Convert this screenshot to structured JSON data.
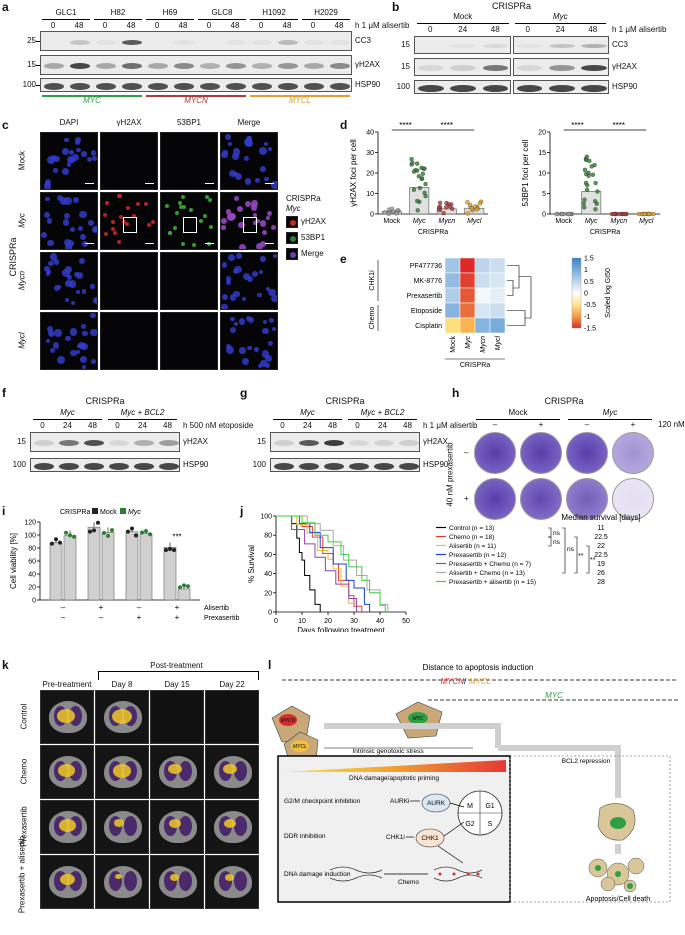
{
  "panels": {
    "a": {
      "letter": "a",
      "cell_lines": [
        "GLC1",
        "H82",
        "H69",
        "GLC8",
        "H1092",
        "H2029"
      ],
      "time_points": [
        "0",
        "48"
      ],
      "treatment": "h 1 μM alisertib",
      "markers": [
        "CC3",
        "γH2AX",
        "HSP90"
      ],
      "mw": [
        "25",
        "15",
        "100"
      ],
      "groups": [
        {
          "label": "MYC",
          "color": "#2f9e44"
        },
        {
          "label": "MYCN",
          "color": "#b03a3a"
        },
        {
          "label": "MYCL",
          "color": "#e0a030"
        }
      ]
    },
    "b": {
      "letter": "b",
      "title": "CRISPRa",
      "groups": [
        "Mock",
        "Myc"
      ],
      "time_points": [
        "0",
        "24",
        "48"
      ],
      "treatment": "h 1 μM alisertib",
      "markers": [
        "CC3",
        "γH2AX",
        "HSP90"
      ],
      "mw": [
        "15",
        "15",
        "100"
      ]
    },
    "c": {
      "letter": "c",
      "columns": [
        "DAPI",
        "γH2AX",
        "53BP1",
        "Merge"
      ],
      "rows": [
        "Mock",
        "Myc",
        "Mycn",
        "Mycl"
      ],
      "side_label": "CRISPRa",
      "legend_title": "CRISPRa",
      "legend_subtitle": "Myc",
      "legend_items": [
        "γH2AX",
        "53BP1",
        "Merge"
      ]
    },
    "d": {
      "letter": "d",
      "xlabel": "CRISPRa",
      "significance": "****",
      "plots": [
        {
          "ylabel": "γH2AX foci per cell",
          "yticks": [
            "0",
            "10",
            "20",
            "30",
            "40"
          ],
          "ymax": 40,
          "categories": [
            "Mock",
            "Myc",
            "Mycn",
            "Mycl"
          ],
          "means": [
            1.2,
            13,
            2.5,
            2.8
          ],
          "colors": [
            "#9e9e9e",
            "#2f7d32",
            "#b03a3a",
            "#e0a030"
          ]
        },
        {
          "ylabel": "53BP1 foci per cell",
          "yticks": [
            "0",
            "5",
            "10",
            "15",
            "20"
          ],
          "ymax": 20,
          "categories": [
            "Mock",
            "Myc",
            "Mycn",
            "Mycl"
          ],
          "means": [
            0,
            5.5,
            0,
            0
          ],
          "colors": [
            "#9e9e9e",
            "#2f7d32",
            "#b03a3a",
            "#e0a030"
          ]
        }
      ]
    },
    "e": {
      "letter": "e",
      "rows": [
        "PF477736",
        "MK-8776",
        "Prexasertib",
        "Etoposide",
        "Cisplatin"
      ],
      "columns": [
        "Mock",
        "Myc",
        "Mycn",
        "Mycl"
      ],
      "group_labels": [
        "CHK1i",
        "Chemo"
      ],
      "xlabel": "CRISPRa",
      "colorbar_label": "Scaled log GI50",
      "colorbar_ticks": [
        "1.5",
        "1",
        "0.5",
        "0",
        "-0.5",
        "-1",
        "-1.5"
      ],
      "values": [
        [
          0.7,
          -1.5,
          0.5,
          0.4
        ],
        [
          0.8,
          -1.4,
          0.4,
          0.3
        ],
        [
          0.6,
          -1.3,
          0.1,
          0.2
        ],
        [
          0.9,
          -1.2,
          0.3,
          0.4
        ],
        [
          -0.6,
          -0.9,
          0.9,
          1.0
        ]
      ]
    },
    "f": {
      "letter": "f",
      "title": "CRISPRa",
      "groups": [
        "Myc",
        "Myc + BCL2"
      ],
      "time_points": [
        "0",
        "24",
        "48",
        "0",
        "24",
        "48"
      ],
      "treatment": "h 500 nM etoposide",
      "markers": [
        "γH2AX",
        "HSP90"
      ],
      "mw": [
        "15",
        "100"
      ]
    },
    "g": {
      "letter": "g",
      "title": "CRISPRa",
      "groups": [
        "Myc",
        "Myc + BCL2"
      ],
      "time_points": [
        "0",
        "24",
        "48",
        "0",
        "24",
        "48"
      ],
      "treatment": "h 1 μM alisertib",
      "markers": [
        "γH2AX",
        "HSP90"
      ],
      "mw": [
        "15",
        "100"
      ]
    },
    "h": {
      "letter": "h",
      "title": "CRISPRa",
      "groups": [
        "Mock",
        "Myc"
      ],
      "alisertib": "120 nM alisertib",
      "prexasertib": "40 nM prexasertib",
      "signs": [
        "–",
        "+",
        "–",
        "+"
      ],
      "row_signs": [
        "–",
        "+"
      ]
    },
    "i": {
      "letter": "i",
      "legend_prefix": "CRISPRa",
      "legend": [
        "Mock",
        "Myc"
      ],
      "ylabel": "Cell viability [%]",
      "yticks": [
        "0",
        "20",
        "40",
        "60",
        "80",
        "100",
        "120"
      ],
      "ymax": 120,
      "row_labels": [
        "Alisertib",
        "Prexasertib"
      ],
      "alisertib_signs": [
        "–",
        "+",
        "–",
        "+"
      ],
      "prexasertib_signs": [
        "–",
        "–",
        "+",
        "+"
      ],
      "significance": "***"
    },
    "j": {
      "letter": "j",
      "ylabel": "% Survival",
      "xlabel": "Days following treatment",
      "yticks": [
        "0",
        "20",
        "40",
        "60",
        "80",
        "100"
      ],
      "xticks": [
        "0",
        "10",
        "20",
        "30",
        "40",
        "50"
      ],
      "median_title": "Median survival [days]",
      "ns": "ns",
      "stars": "**",
      "series": [
        {
          "name": "Control (n = 13)",
          "color": "#000000",
          "median": "11"
        },
        {
          "name": "Chemo (n = 18)",
          "color": "#e53935",
          "median": "22.5"
        },
        {
          "name": "Alisertib (n = 11)",
          "color": "#e6c229",
          "median": "22"
        },
        {
          "name": "Prexasertib (n = 12)",
          "color": "#1e3ed6",
          "median": "22.5"
        },
        {
          "name": "Prexasertib + Chemo (n = 7)",
          "color": "#8e44ad",
          "median": "19"
        },
        {
          "name": "Alisertib + Chemo (n = 13)",
          "color": "#a8a8a8",
          "median": "26"
        },
        {
          "name": "Prexasertib + alisertib (n = 15)",
          "color": "#3ccf3c",
          "median": "28"
        }
      ]
    },
    "k": {
      "letter": "k",
      "pre": "Pre-treatment",
      "post": "Post-treatment",
      "days": [
        "Day 8",
        "Day 15",
        "Day 22"
      ],
      "rows": [
        "Control",
        "Chemo",
        "Prexasertib",
        "Prexasertib + alisertib"
      ]
    },
    "l": {
      "letter": "l",
      "title": "Distance to apoptosis induction",
      "mycn": "MYCN",
      "slash": "/",
      "mycl": "MYCL",
      "myc": "MYC",
      "cell_labels": [
        "MYCN",
        "MYCL",
        "MYC"
      ],
      "stress": "Intrinsic genotoxic stress",
      "bcl2": "BCL2 repression",
      "gradient": "DNA damage/apoptotic priming",
      "rows": [
        "G2/M checkpoint inhibition",
        "DDR inhibition",
        "DNA damage induction"
      ],
      "inhibitors": [
        "AURKi",
        "CHK1i",
        "Chemo"
      ],
      "kinases": [
        "AURK",
        "CHK1"
      ],
      "phases": [
        "M",
        "G1",
        "S",
        "G2"
      ],
      "death": "Apoptosis/Cell death"
    }
  }
}
